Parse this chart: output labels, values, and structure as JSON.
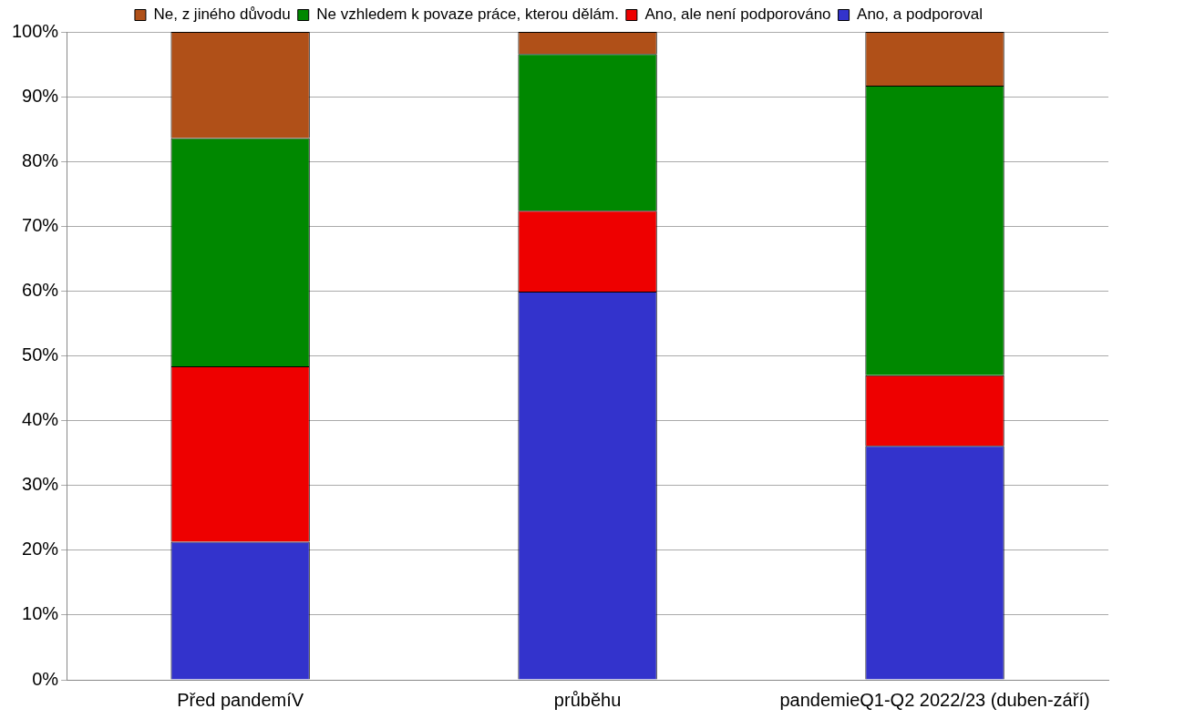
{
  "chart_data": {
    "type": "bar",
    "stacked": true,
    "categories": [
      "Před pandemíV",
      "průběhu",
      "pandemieQ1-Q2 2022/23 (duben-září)"
    ],
    "series": [
      {
        "name": "Ano, a podporoval",
        "color": "#3333cc",
        "values": [
          21.3,
          59.9,
          36.1
        ]
      },
      {
        "name": "Ano, ale není podporováno",
        "color": "#ee0000",
        "values": [
          27.1,
          12.5,
          10.9
        ]
      },
      {
        "name": "Ne vzhledem k povaze práce, kterou dělám.",
        "color": "#008800",
        "values": [
          35.2,
          24.2,
          44.7
        ]
      },
      {
        "name": "Ne, z jiného důvodu",
        "color": "#b05018",
        "values": [
          16.4,
          3.4,
          8.3
        ]
      }
    ],
    "ylim": [
      0,
      100
    ],
    "yticks": [
      {
        "value": 0,
        "label": "0%"
      },
      {
        "value": 10,
        "label": "10%"
      },
      {
        "value": 20,
        "label": "20%"
      },
      {
        "value": 30,
        "label": "30%"
      },
      {
        "value": 40,
        "label": "40%"
      },
      {
        "value": 50,
        "label": "50%"
      },
      {
        "value": 60,
        "label": "60%"
      },
      {
        "value": 70,
        "label": "70%"
      },
      {
        "value": 80,
        "label": "80%"
      },
      {
        "value": 90,
        "label": "90%"
      },
      {
        "value": 100,
        "label": "100%"
      }
    ],
    "grid": "y",
    "legend": "top"
  }
}
